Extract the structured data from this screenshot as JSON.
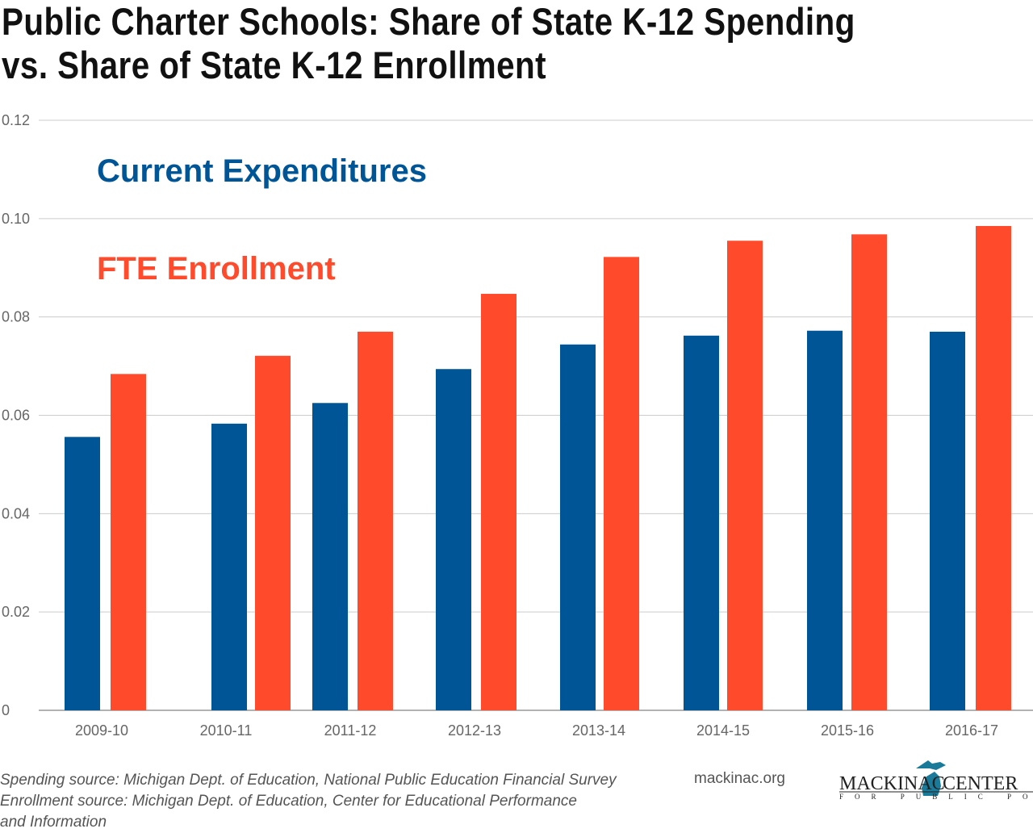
{
  "title_line1": "Public Charter Schools: Share of State K-12 Spending",
  "title_line2": "vs. Share of State K-12 Enrollment",
  "chart_data": {
    "type": "bar",
    "title": "Public Charter Schools: Share of State K-12 Spending vs. Share of State K-12 Enrollment",
    "categories": [
      "2009-10",
      "2010-11",
      "2011-12",
      "2012-13",
      "2013-14",
      "2014-15",
      "2015-16",
      "2016-17"
    ],
    "series": [
      {
        "name": "Current Expenditures",
        "color": "#005596",
        "values": [
          0.0556,
          0.0583,
          0.0625,
          0.0694,
          0.0744,
          0.0762,
          0.0772,
          0.077
        ]
      },
      {
        "name": "FTE Enrollment",
        "color": "#FF4A2B",
        "values": [
          0.0684,
          0.0721,
          0.077,
          0.0847,
          0.0922,
          0.0955,
          0.0968,
          0.0985
        ]
      }
    ],
    "yticks": [
      "0",
      "0.02",
      "0.04",
      "0.06",
      "0.08",
      "0.10",
      "0.12"
    ],
    "ylim": [
      0,
      0.12
    ],
    "grid": true,
    "legend_placement": "top-left",
    "xlabel": "",
    "ylabel": ""
  },
  "footer": {
    "line1": "Spending source: Michigan Dept. of Education, National Public Education Financial Survey",
    "line2": "Enrollment source: Michigan Dept. of Education, Center for Educational Performance",
    "line3": "and Information",
    "site": "mackinac.org"
  },
  "logo": {
    "name_left": "MACKINAC",
    "name_right": "CENTER",
    "tagline": "FOR PUBLIC POLICY",
    "color": "#1a7a9a"
  }
}
